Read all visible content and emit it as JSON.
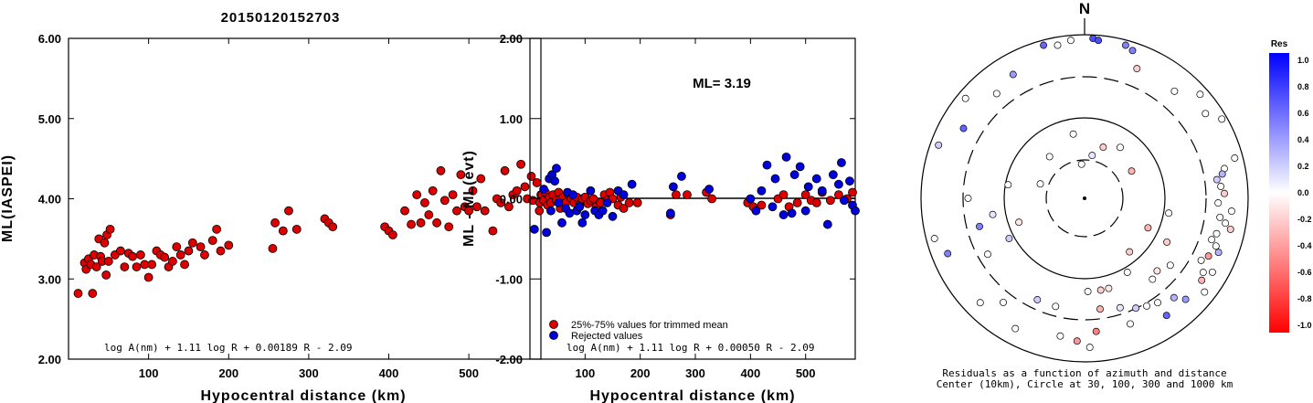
{
  "title": "20150120152703",
  "chart_data": [
    {
      "type": "scatter",
      "name": "ml-vs-distance",
      "xlabel": "Hypocentral distance (km)",
      "ylabel": "ML(IASPEI)",
      "xlim": [
        0,
        590
      ],
      "ylim": [
        2.0,
        6.0
      ],
      "xticks": [
        "100",
        "200",
        "300",
        "400",
        "500"
      ],
      "yticks": [
        "2.00",
        "3.00",
        "4.00",
        "5.00",
        "6.00"
      ],
      "formula": "log A(nm) + 1.11 log R + 0.00189 R - 2.09",
      "points": [
        [
          12,
          2.82
        ],
        [
          20,
          3.2
        ],
        [
          22,
          3.12
        ],
        [
          25,
          3.25
        ],
        [
          28,
          3.18
        ],
        [
          30,
          2.82
        ],
        [
          32,
          3.3
        ],
        [
          35,
          3.15
        ],
        [
          38,
          3.5
        ],
        [
          40,
          3.28
        ],
        [
          42,
          3.22
        ],
        [
          45,
          3.45
        ],
        [
          47,
          3.05
        ],
        [
          48,
          3.55
        ],
        [
          50,
          3.22
        ],
        [
          52,
          3.62
        ],
        [
          58,
          3.3
        ],
        [
          65,
          3.35
        ],
        [
          70,
          3.15
        ],
        [
          75,
          3.32
        ],
        [
          80,
          3.28
        ],
        [
          85,
          3.15
        ],
        [
          90,
          3.3
        ],
        [
          95,
          3.18
        ],
        [
          100,
          3.02
        ],
        [
          104,
          3.18
        ],
        [
          110,
          3.35
        ],
        [
          115,
          3.3
        ],
        [
          120,
          3.27
        ],
        [
          125,
          3.15
        ],
        [
          130,
          3.22
        ],
        [
          135,
          3.4
        ],
        [
          140,
          3.3
        ],
        [
          145,
          3.18
        ],
        [
          150,
          3.35
        ],
        [
          155,
          3.45
        ],
        [
          165,
          3.4
        ],
        [
          170,
          3.3
        ],
        [
          180,
          3.48
        ],
        [
          185,
          3.62
        ],
        [
          190,
          3.35
        ],
        [
          200,
          3.42
        ],
        [
          255,
          3.38
        ],
        [
          258,
          3.7
        ],
        [
          268,
          3.6
        ],
        [
          275,
          3.85
        ],
        [
          285,
          3.62
        ],
        [
          320,
          3.75
        ],
        [
          325,
          3.7
        ],
        [
          330,
          3.65
        ],
        [
          395,
          3.65
        ],
        [
          400,
          3.6
        ],
        [
          405,
          3.55
        ],
        [
          420,
          3.85
        ],
        [
          428,
          3.68
        ],
        [
          435,
          4.05
        ],
        [
          440,
          3.7
        ],
        [
          445,
          3.95
        ],
        [
          450,
          3.8
        ],
        [
          455,
          4.1
        ],
        [
          460,
          3.7
        ],
        [
          465,
          4.35
        ],
        [
          470,
          3.98
        ],
        [
          475,
          3.65
        ],
        [
          480,
          4.05
        ],
        [
          485,
          3.85
        ],
        [
          490,
          4.3
        ],
        [
          495,
          3.9
        ],
        [
          500,
          3.85
        ],
        [
          505,
          4.1
        ],
        [
          510,
          3.9
        ],
        [
          515,
          4.25
        ],
        [
          520,
          3.85
        ],
        [
          530,
          3.6
        ],
        [
          535,
          4.0
        ],
        [
          540,
          3.95
        ],
        [
          545,
          4.35
        ],
        [
          550,
          3.9
        ],
        [
          555,
          4.05
        ],
        [
          560,
          4.1
        ],
        [
          565,
          4.43
        ],
        [
          570,
          4.15
        ],
        [
          573,
          4.0
        ],
        [
          578,
          4.28
        ],
        [
          580,
          3.98
        ],
        [
          585,
          4.2
        ],
        [
          588,
          3.85
        ],
        [
          590,
          4.05
        ]
      ]
    },
    {
      "type": "scatter",
      "name": "residual-vs-distance",
      "xlabel": "Hypocentral distance (km)",
      "ylabel": "ML - ML(evt)",
      "xlim": [
        0,
        590
      ],
      "ylim": [
        -2.0,
        2.0
      ],
      "xticks": [
        "100",
        "200",
        "300",
        "400",
        "500"
      ],
      "yticks": [
        "-2.00",
        "-1.00",
        "0.00",
        "1.00",
        "2.00"
      ],
      "annotation": "ML= 3.19",
      "formula": "log A(nm) + 1.11 log R + 0.00050 R - 2.09",
      "series": [
        {
          "name": "25%-75% values for trimmed mean",
          "color": "#dd0000",
          "points": [
            [
              18,
              -0.05
            ],
            [
              22,
              0.05
            ],
            [
              25,
              -0.02
            ],
            [
              28,
              0.08
            ],
            [
              32,
              -0.08
            ],
            [
              35,
              0.02
            ],
            [
              38,
              -0.05
            ],
            [
              42,
              0.05
            ],
            [
              48,
              -0.02
            ],
            [
              52,
              0.08
            ],
            [
              55,
              -0.12
            ],
            [
              60,
              0.02
            ],
            [
              65,
              -0.05
            ],
            [
              70,
              0.05
            ],
            [
              75,
              0.0
            ],
            [
              80,
              -0.05
            ],
            [
              85,
              0.02
            ],
            [
              90,
              -0.08
            ],
            [
              95,
              0.0
            ],
            [
              100,
              0.02
            ],
            [
              105,
              -0.06
            ],
            [
              110,
              -0.02
            ],
            [
              115,
              0.0
            ],
            [
              120,
              -0.1
            ],
            [
              128,
              -0.05
            ],
            [
              135,
              0.05
            ],
            [
              140,
              -0.02
            ],
            [
              145,
              0.08
            ],
            [
              150,
              0.0
            ],
            [
              160,
              -0.08
            ],
            [
              165,
              0.02
            ],
            [
              170,
              -0.12
            ],
            [
              180,
              -0.05
            ],
            [
              195,
              -0.05
            ],
            [
              255,
              -0.2
            ],
            [
              265,
              0.05
            ],
            [
              285,
              0.05
            ],
            [
              320,
              0.08
            ],
            [
              330,
              0.0
            ],
            [
              395,
              -0.05
            ],
            [
              405,
              -0.1
            ],
            [
              420,
              -0.08
            ],
            [
              450,
              0.0
            ],
            [
              460,
              0.05
            ],
            [
              470,
              -0.1
            ],
            [
              485,
              -0.05
            ],
            [
              500,
              0.05
            ],
            [
              510,
              -0.02
            ],
            [
              520,
              -0.05
            ],
            [
              530,
              0.08
            ],
            [
              545,
              -0.02
            ],
            [
              560,
              0.05
            ],
            [
              575,
              0.0
            ],
            [
              585,
              0.08
            ]
          ]
        },
        {
          "name": "Rejected values",
          "color": "#0000dd",
          "points": [
            [
              8,
              -0.38
            ],
            [
              25,
              0.12
            ],
            [
              30,
              -0.42
            ],
            [
              35,
              0.25
            ],
            [
              38,
              -0.15
            ],
            [
              40,
              0.3
            ],
            [
              45,
              0.22
            ],
            [
              48,
              0.38
            ],
            [
              52,
              -0.05
            ],
            [
              58,
              -0.3
            ],
            [
              65,
              -0.12
            ],
            [
              68,
              0.08
            ],
            [
              72,
              -0.18
            ],
            [
              78,
              0.05
            ],
            [
              85,
              -0.15
            ],
            [
              90,
              -0.1
            ],
            [
              95,
              -0.3
            ],
            [
              100,
              -0.2
            ],
            [
              110,
              0.1
            ],
            [
              118,
              -0.15
            ],
            [
              125,
              -0.2
            ],
            [
              132,
              -0.15
            ],
            [
              140,
              -0.05
            ],
            [
              150,
              -0.22
            ],
            [
              160,
              0.1
            ],
            [
              170,
              0.05
            ],
            [
              185,
              0.18
            ],
            [
              255,
              -0.18
            ],
            [
              260,
              0.15
            ],
            [
              275,
              0.28
            ],
            [
              325,
              0.12
            ],
            [
              400,
              0.0
            ],
            [
              410,
              -0.15
            ],
            [
              420,
              0.1
            ],
            [
              430,
              0.42
            ],
            [
              440,
              -0.1
            ],
            [
              445,
              0.25
            ],
            [
              460,
              -0.2
            ],
            [
              465,
              0.52
            ],
            [
              475,
              -0.18
            ],
            [
              480,
              0.3
            ],
            [
              490,
              0.4
            ],
            [
              500,
              -0.15
            ],
            [
              505,
              0.15
            ],
            [
              520,
              0.25
            ],
            [
              530,
              0.1
            ],
            [
              540,
              -0.32
            ],
            [
              550,
              0.3
            ],
            [
              560,
              0.18
            ],
            [
              565,
              0.45
            ],
            [
              570,
              -0.02
            ],
            [
              580,
              0.22
            ],
            [
              585,
              -0.08
            ],
            [
              590,
              -0.15
            ]
          ]
        }
      ]
    },
    {
      "type": "scatter",
      "name": "azimuth-distance-residuals",
      "north_label": "N",
      "caption_line1": "Residuals as a function of azimuth and distance",
      "caption_line2": "Center (10km), Circle at 30, 100, 300 and 1000 km",
      "colorbar_title": "Res",
      "colorbar_ticks": [
        "1.0",
        "0.8",
        "0.6",
        "0.4",
        "0.2",
        "0.0",
        "-0.2",
        "-0.4",
        "-0.6",
        "-0.8",
        "-1.0"
      ],
      "rings_km": [
        30,
        100,
        300,
        1000
      ],
      "stations": [
        [
          -110,
          0.45,
          -0.1
        ],
        [
          -118,
          0.55,
          0.2
        ],
        [
          -100,
          0.6,
          0.1
        ],
        [
          -105,
          0.7,
          0.5
        ],
        [
          -80,
          0.5,
          0.0
        ],
        [
          -72,
          0.3,
          0.0
        ],
        [
          -40,
          0.35,
          0.0
        ],
        [
          -10,
          0.42,
          0.0
        ],
        [
          -5,
          0.22,
          -0.0
        ],
        [
          10,
          0.28,
          0.1
        ],
        [
          20,
          0.35,
          -0.2
        ],
        [
          35,
          0.4,
          0.0
        ],
        [
          60,
          0.35,
          -0.3
        ],
        [
          115,
          0.45,
          -0.3
        ],
        [
          140,
          0.45,
          -0.2
        ],
        [
          100,
          0.55,
          0.0
        ],
        [
          118,
          0.6,
          -0.2
        ],
        [
          150,
          0.55,
          0.0
        ],
        [
          135,
          0.66,
          -0.1
        ],
        [
          128,
          0.7,
          0.0
        ],
        [
          165,
          0.6,
          -0.1
        ],
        [
          170,
          0.6,
          -0.2
        ],
        [
          178,
          0.6,
          0.0
        ],
        [
          172,
          0.72,
          -0.3
        ],
        [
          162,
          0.74,
          0.1
        ],
        [
          155,
          0.78,
          0.2
        ],
        [
          150,
          0.8,
          0.0
        ],
        [
          145,
          0.82,
          0.0
        ],
        [
          140,
          0.68,
          0.0
        ],
        [
          138,
          0.86,
          0.3
        ],
        [
          145,
          0.92,
          0.6
        ],
        [
          160,
          0.86,
          0.0
        ],
        [
          190,
          0.9,
          0.0
        ],
        [
          183,
          0.92,
          -0.4
        ],
        [
          178,
          0.96,
          0.0
        ],
        [
          175,
          0.86,
          -0.5
        ],
        [
          195,
          0.72,
          0.0
        ],
        [
          205,
          0.72,
          0.2
        ],
        [
          208,
          0.95,
          0.0
        ],
        [
          218,
          0.85,
          0.0
        ],
        [
          225,
          0.95,
          0.0
        ],
        [
          240,
          0.72,
          0.0
        ],
        [
          248,
          0.95,
          0.5
        ],
        [
          255,
          1.0,
          0.0
        ],
        [
          270,
          0.75,
          0.0
        ],
        [
          290,
          1.0,
          0.2
        ],
        [
          300,
          0.9,
          0.6
        ],
        [
          310,
          1.0,
          0.0
        ],
        [
          320,
          0.88,
          0.0
        ],
        [
          330,
          0.92,
          0.4
        ],
        [
          345,
          1.02,
          0.6
        ],
        [
          350,
          1.0,
          0.0
        ],
        [
          355,
          1.02,
          0.0
        ],
        [
          3,
          1.03,
          0.7
        ],
        [
          5,
          1.02,
          0.7
        ],
        [
          15,
          1.02,
          0.5
        ],
        [
          18,
          1.0,
          0.5
        ],
        [
          22,
          0.9,
          -0.2
        ],
        [
          40,
          0.9,
          0.0
        ],
        [
          48,
          1.0,
          0.0
        ],
        [
          55,
          0.95,
          0.0
        ],
        [
          60,
          1.02,
          0.0
        ],
        [
          75,
          1.0,
          0.0
        ],
        [
          78,
          0.92,
          0.0
        ],
        [
          80,
          0.9,
          0.3
        ],
        [
          82,
          0.86,
          0.2
        ],
        [
          85,
          0.88,
          0.0
        ],
        [
          88,
          0.9,
          -0.2
        ],
        [
          92,
          0.86,
          0.0
        ],
        [
          95,
          0.95,
          0.0
        ],
        [
          98,
          0.88,
          0.0
        ],
        [
          100,
          0.92,
          0.0
        ],
        [
          102,
          0.96,
          -0.2
        ],
        [
          105,
          0.88,
          0.0
        ],
        [
          108,
          0.86,
          0.0
        ],
        [
          110,
          0.9,
          0.0
        ],
        [
          112,
          0.93,
          0.3
        ],
        [
          115,
          0.88,
          -0.4
        ],
        [
          118,
          0.85,
          0.0
        ],
        [
          120,
          0.95,
          0.0
        ],
        [
          122,
          0.9,
          0.0
        ],
        [
          125,
          0.92,
          -0.3
        ],
        [
          128,
          0.98,
          0.0
        ],
        [
          135,
          0.92,
          0.4
        ]
      ]
    }
  ]
}
